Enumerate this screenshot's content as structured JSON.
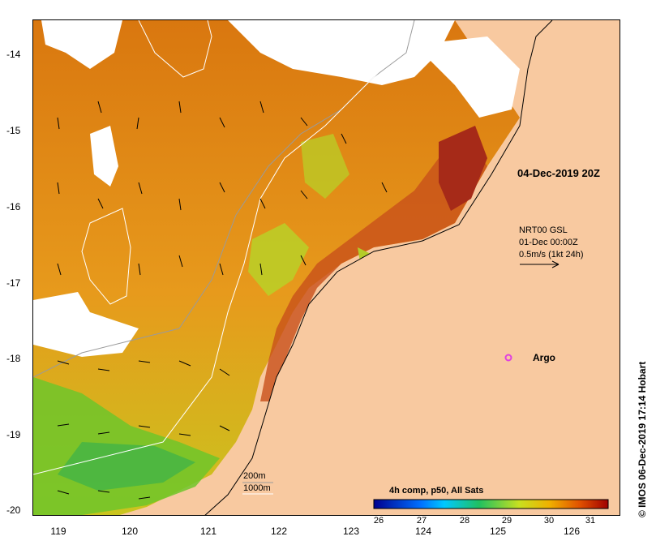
{
  "map": {
    "lat_labels": [
      "-14",
      "-15",
      "-16",
      "-17",
      "-18",
      "-19",
      "-20"
    ],
    "lon_labels": [
      "119",
      "120",
      "121",
      "122",
      "123",
      "124",
      "125",
      "126"
    ],
    "date_label": "04-Dec-2019 20Z",
    "current_legend": {
      "line1": "NRT00 GSL",
      "line2": "01-Dec 00:00Z",
      "line3": "0.5m/s (1kt 24h)"
    },
    "argo_label": "Argo",
    "contour_legend": {
      "line1": "200m",
      "line2": "1000m"
    },
    "colorbar": {
      "title": "4h comp, p50, All Sats",
      "ticks": [
        "26",
        "27",
        "28",
        "29",
        "30",
        "31"
      ]
    },
    "credit": "© IMOS 06-Dec-2019 17:14 Hobart",
    "colors": {
      "land": "#f8c9a0",
      "cloud": "#ffffff",
      "argo": "#e040e0",
      "warm": "#c04010",
      "mid": "#e88a10",
      "cool": "#9acd32"
    }
  }
}
